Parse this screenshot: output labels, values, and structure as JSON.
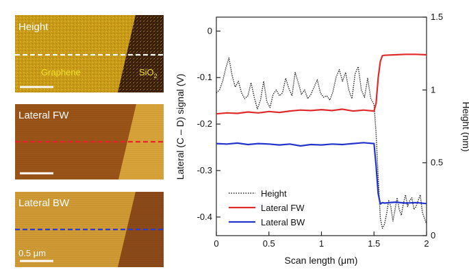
{
  "panels": [
    {
      "label": "Height",
      "region_labels": {
        "left": "Graphene",
        "right_main": "SiO",
        "right_sub": "2"
      },
      "line_color": "#ffffff",
      "scale_bar": ""
    },
    {
      "label": "Lateral FW",
      "line_color": "#e8202b",
      "scale_bar": ""
    },
    {
      "label": "Lateral BW",
      "line_color": "#2b3bd6",
      "scale_bar": "0.5 μm"
    }
  ],
  "colors": {
    "afm_height_graphene": "#c99a16",
    "afm_height_sio2": "#3a1e08",
    "afm_lateral_fw_left": "#9b5418",
    "afm_lateral_fw_right": "#d8a43a",
    "afm_lateral_bw_left": "#d09a34",
    "afm_lateral_bw_right": "#8b4a18",
    "height_series": "#222222",
    "lateral_fw_series": "#e02a2a",
    "lateral_bw_series": "#2233cc"
  },
  "chart_data": {
    "type": "line",
    "xlabel": "Scan length (μm)",
    "ylabel": "Lateral (C – D) signal (V)",
    "y2label": "Height (nm)",
    "xlim": [
      0,
      2
    ],
    "ylim": [
      -0.44,
      0.03
    ],
    "y2lim": [
      0,
      1.5
    ],
    "xticks": [
      "0",
      "0.5",
      "1",
      "1.5",
      "2"
    ],
    "yticks": [
      "0",
      "-0.1",
      "-0.2",
      "-0.3",
      "-0.4"
    ],
    "y2ticks": [
      "0",
      "0.5",
      "1",
      "1.5"
    ],
    "legend_position": "bottom-left",
    "series": [
      {
        "name": "Height",
        "axis": "right",
        "style": "dotted",
        "x": [
          0,
          0.03,
          0.06,
          0.09,
          0.12,
          0.15,
          0.18,
          0.21,
          0.24,
          0.27,
          0.3,
          0.33,
          0.36,
          0.39,
          0.42,
          0.45,
          0.48,
          0.51,
          0.54,
          0.57,
          0.6,
          0.63,
          0.66,
          0.69,
          0.72,
          0.75,
          0.78,
          0.81,
          0.84,
          0.87,
          0.9,
          0.93,
          0.96,
          0.99,
          1.02,
          1.05,
          1.08,
          1.11,
          1.14,
          1.17,
          1.2,
          1.23,
          1.26,
          1.29,
          1.32,
          1.35,
          1.38,
          1.41,
          1.44,
          1.47,
          1.5,
          1.52,
          1.54,
          1.56,
          1.58,
          1.6,
          1.62,
          1.64,
          1.66,
          1.68,
          1.7,
          1.72,
          1.74,
          1.76,
          1.78,
          1.8,
          1.82,
          1.84,
          1.86,
          1.88,
          1.9,
          1.92,
          1.94,
          1.96,
          1.98,
          2.0
        ],
        "values": [
          0.98,
          1.0,
          1.06,
          1.15,
          1.22,
          1.1,
          1.02,
          1.06,
          0.98,
          0.94,
          0.96,
          1.05,
          0.95,
          0.87,
          0.93,
          1.06,
          0.92,
          0.88,
          0.97,
          1.0,
          0.96,
          0.98,
          1.08,
          1.01,
          0.96,
          1.12,
          1.05,
          0.97,
          1.0,
          0.94,
          0.97,
          1.02,
          1.07,
          0.98,
          0.95,
          0.96,
          0.93,
          0.99,
          1.09,
          1.14,
          1.06,
          1.12,
          1.0,
          0.94,
          1.11,
          1.16,
          1.0,
          0.95,
          1.08,
          0.94,
          0.9,
          0.7,
          0.4,
          0.12,
          0.05,
          0.08,
          0.15,
          0.24,
          0.2,
          0.1,
          0.18,
          0.26,
          0.18,
          0.14,
          0.22,
          0.28,
          0.2,
          0.24,
          0.26,
          0.18,
          0.2,
          0.24,
          0.28,
          0.16,
          0.12,
          0.08
        ]
      },
      {
        "name": "Lateral FW",
        "axis": "left",
        "style": "solid",
        "x": [
          0,
          0.1,
          0.2,
          0.3,
          0.4,
          0.5,
          0.6,
          0.7,
          0.8,
          0.9,
          1.0,
          1.1,
          1.2,
          1.3,
          1.4,
          1.5,
          1.52,
          1.54,
          1.56,
          1.58,
          1.6,
          1.7,
          1.8,
          1.9,
          2.0
        ],
        "values": [
          -0.178,
          -0.176,
          -0.177,
          -0.174,
          -0.176,
          -0.173,
          -0.175,
          -0.172,
          -0.17,
          -0.171,
          -0.169,
          -0.171,
          -0.168,
          -0.172,
          -0.17,
          -0.172,
          -0.155,
          -0.1,
          -0.065,
          -0.053,
          -0.052,
          -0.051,
          -0.05,
          -0.05,
          -0.051
        ]
      },
      {
        "name": "Lateral BW",
        "axis": "left",
        "style": "solid",
        "x": [
          0,
          0.1,
          0.2,
          0.3,
          0.4,
          0.5,
          0.6,
          0.7,
          0.8,
          0.9,
          1.0,
          1.1,
          1.2,
          1.3,
          1.4,
          1.5,
          1.52,
          1.54,
          1.56,
          1.58,
          1.6,
          1.7,
          1.8,
          1.9,
          2.0
        ],
        "values": [
          -0.242,
          -0.243,
          -0.241,
          -0.244,
          -0.242,
          -0.243,
          -0.245,
          -0.243,
          -0.247,
          -0.244,
          -0.245,
          -0.243,
          -0.244,
          -0.242,
          -0.24,
          -0.242,
          -0.29,
          -0.35,
          -0.372,
          -0.369,
          -0.37,
          -0.368,
          -0.37,
          -0.369,
          -0.371
        ]
      }
    ]
  }
}
